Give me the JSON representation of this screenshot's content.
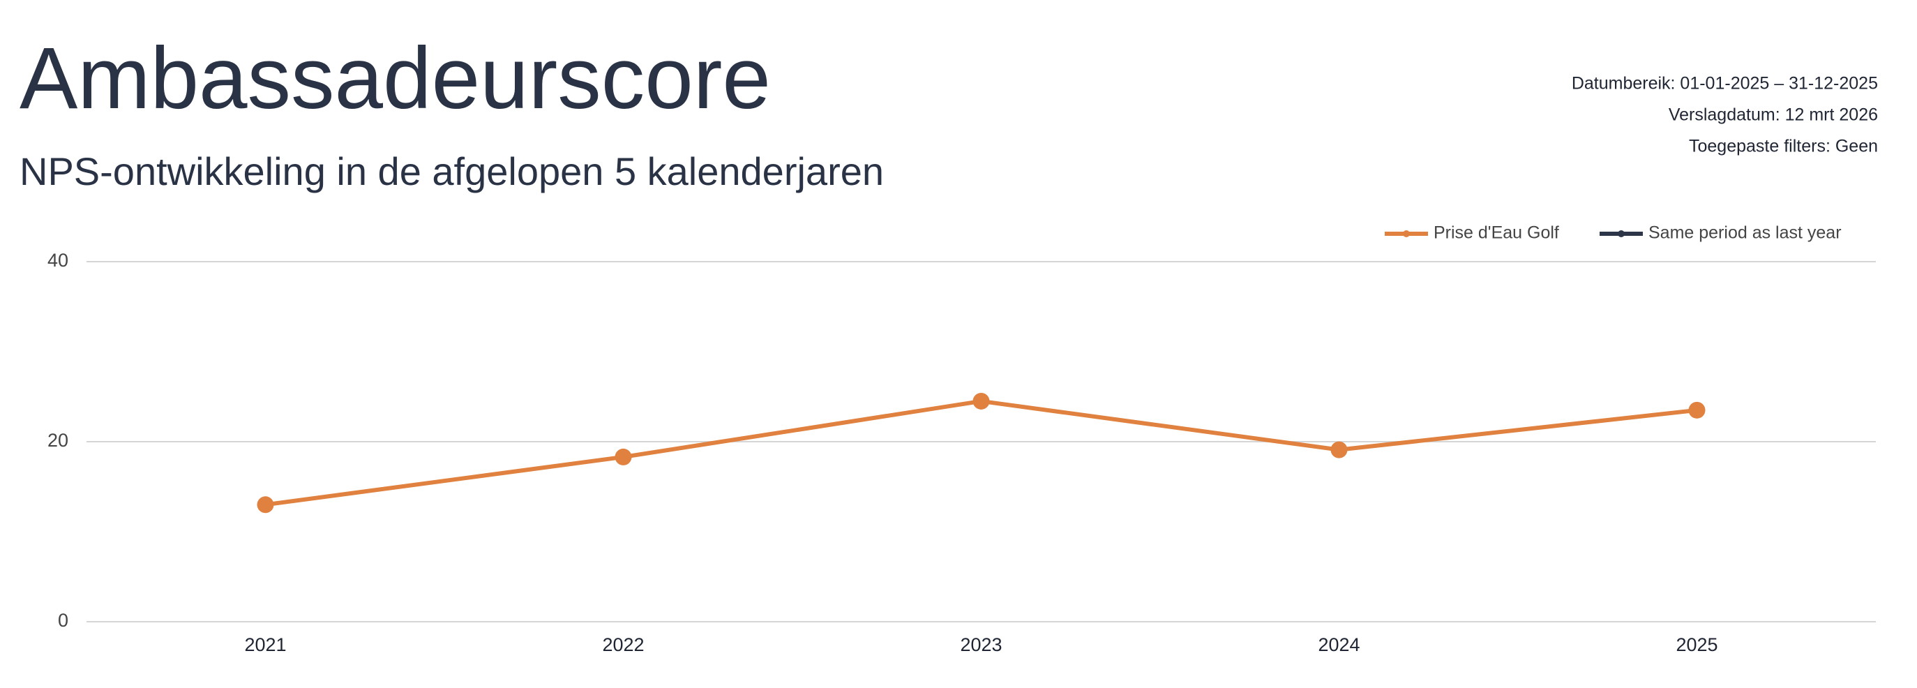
{
  "title": "Ambassadeurscore",
  "info": [
    "Datumbereik: 01-01-2025 – 31-12-2025",
    "Verslagdatum: 12 mrt 2026",
    "Toegepaste filters: Geen"
  ],
  "chart_data": {
    "type": "line",
    "title": "NPS-ontwikkeling in de afgelopen 5 kalenderjaren",
    "categories": [
      "2021",
      "2022",
      "2023",
      "2024",
      "2025"
    ],
    "series": [
      {
        "name": "Prise d'Eau Golf",
        "color": "#e0813f",
        "values": [
          13,
          18.3,
          24.5,
          19.1,
          23.5
        ]
      },
      {
        "name": "Same period as last year",
        "color": "#2d3648",
        "values": [
          null,
          null,
          null,
          null,
          null
        ]
      }
    ],
    "ylim": [
      0,
      40
    ],
    "yticks": [
      0,
      20,
      40
    ],
    "grid": true,
    "legend": "top-right"
  }
}
